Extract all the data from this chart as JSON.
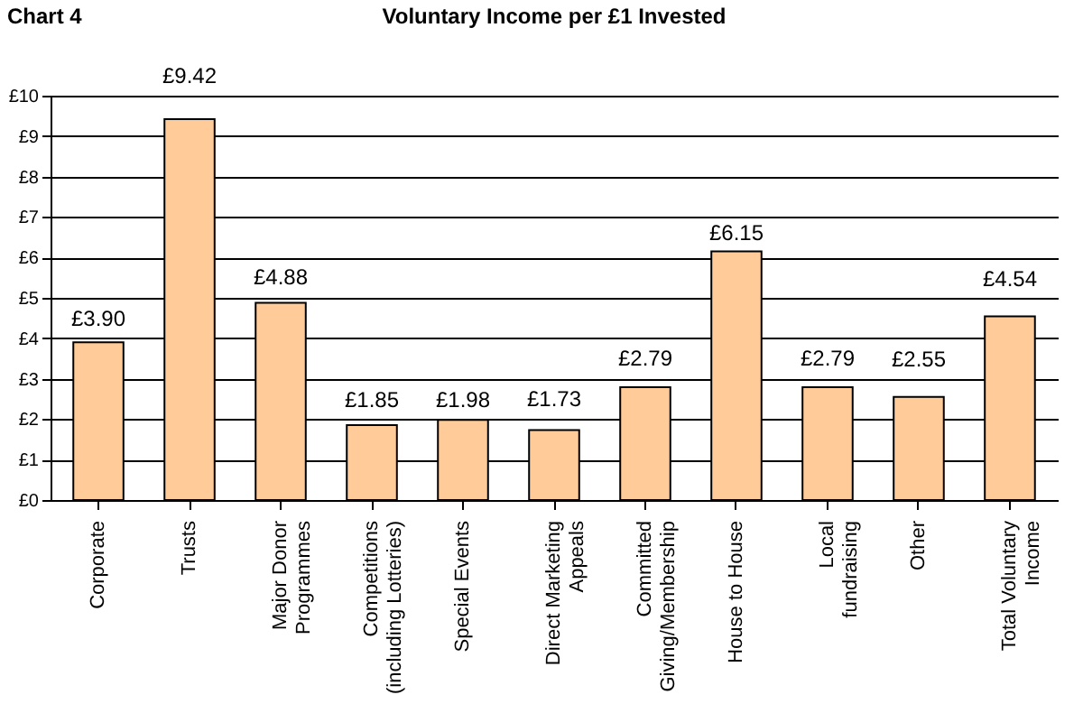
{
  "chart_data": {
    "type": "bar",
    "title": "Voluntary Income per £1 Invested",
    "annotations": [
      "Chart 4"
    ],
    "categories": [
      "Corporate",
      "Trusts",
      "Major Donor Programmes",
      "Competitions (including Lotteries)",
      "Special Events",
      "Direct Marketing Appeals",
      "Committed Giving/Membership",
      "House to House",
      "Local fundraising",
      "Other",
      "Total Voluntary Income"
    ],
    "values": [
      3.9,
      9.42,
      4.88,
      1.85,
      1.98,
      1.73,
      2.79,
      6.15,
      2.79,
      2.55,
      4.54
    ],
    "value_labels": [
      "£3.90",
      "£9.42",
      "£4.88",
      "£1.85",
      "£1.98",
      "£1.73",
      "£2.79",
      "£6.15",
      "£2.79",
      "£2.55",
      "£4.54"
    ],
    "color": "#ffcc99",
    "ylim": [
      0,
      10
    ],
    "yticks": [
      {
        "value": 0,
        "label": "£0"
      },
      {
        "value": 1,
        "label": "£1"
      },
      {
        "value": 2,
        "label": "£2"
      },
      {
        "value": 3,
        "label": "£3"
      },
      {
        "value": 4,
        "label": "£4"
      },
      {
        "value": 5,
        "label": "£5"
      },
      {
        "value": 6,
        "label": "£6"
      },
      {
        "value": 7,
        "label": "£7"
      },
      {
        "value": 8,
        "label": "£8"
      },
      {
        "value": 9,
        "label": "£9"
      },
      {
        "value": 10,
        "label": "£10"
      }
    ],
    "grid": "y"
  }
}
